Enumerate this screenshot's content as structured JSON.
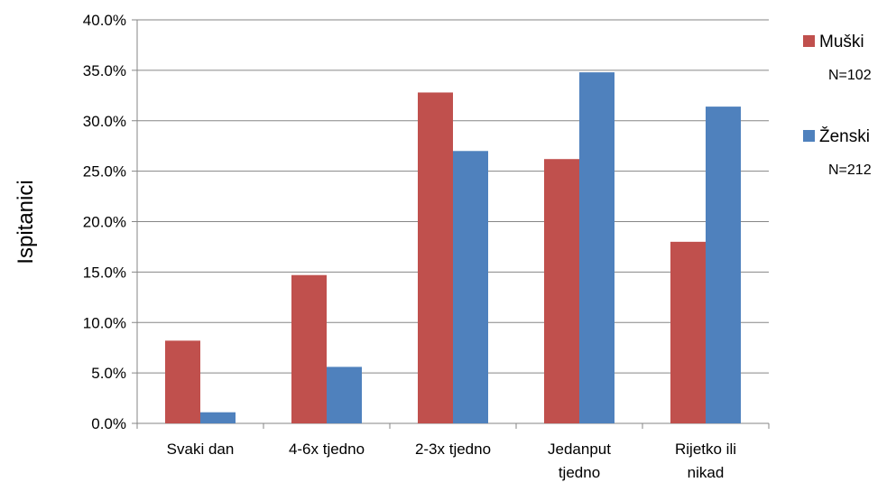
{
  "chart_data": {
    "type": "bar",
    "title": "",
    "xlabel": "",
    "ylabel": "Ispitanici",
    "categories": [
      [
        "Svaki dan"
      ],
      [
        "4-6x tjedno"
      ],
      [
        "2-3x tjedno"
      ],
      [
        "Jedanput",
        "tjedno"
      ],
      [
        "Rijetko ili",
        "nikad"
      ]
    ],
    "series": [
      {
        "name": "Muški",
        "n_label": "N=102",
        "color": "#c0504d",
        "values": [
          8.2,
          14.7,
          32.8,
          26.2,
          18.0
        ]
      },
      {
        "name": "Ženski",
        "n_label": "N=212",
        "color": "#4f81bd",
        "values": [
          1.1,
          5.6,
          27.0,
          34.8,
          31.4
        ]
      }
    ],
    "ylim": [
      0,
      40
    ],
    "ytick_step": 5,
    "ytick_format": "percent_1dp",
    "grid": true,
    "legend_position": "right"
  }
}
